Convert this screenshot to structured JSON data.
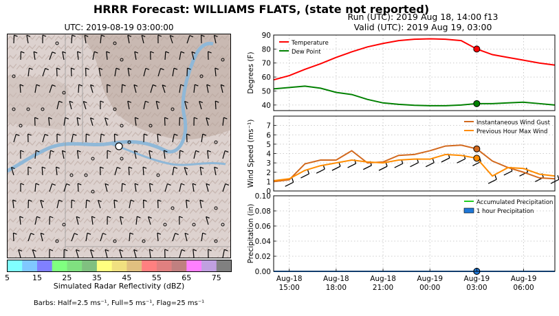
{
  "main_title": "HRRR Forecast: WILLIAMS FLATS, (state not reported)",
  "run_line": "Run (UTC): 2019 Aug 18, 14:00 f13",
  "valid_line": "Valid (UTC): 2019 Aug 19, 03:00",
  "map": {
    "title": "UTC: 2019-08-19 03:00:00",
    "colorbar_label": "Simulated Radar Reflectivity (dBZ)",
    "barbs_note": "Barbs: Half=2.5 ms⁻¹, Full=5 ms⁻¹, Flag=25 ms⁻¹",
    "colorbar_ticks": [
      "5",
      "15",
      "25",
      "35",
      "45",
      "55",
      "65",
      "75"
    ],
    "colorbar_colors": [
      "#80ffff",
      "#80c8ff",
      "#8080ff",
      "#80ff80",
      "#80e080",
      "#80c080",
      "#ffff80",
      "#f0e080",
      "#e0c080",
      "#ff8080",
      "#e08080",
      "#c08080",
      "#ff80ff",
      "#c0a0e0",
      "#808080"
    ]
  },
  "chart_data": [
    {
      "type": "line",
      "ylabel": "Degrees (F)",
      "ylim": [
        36,
        90
      ],
      "yticks": [
        "40",
        "50",
        "60",
        "70",
        "80",
        "90"
      ],
      "x_hours": [
        14,
        15,
        16,
        17,
        18,
        19,
        20,
        21,
        22,
        23,
        24,
        25,
        26,
        27,
        28,
        29,
        30,
        31,
        32
      ],
      "series": [
        {
          "name": "Temperature",
          "color": "#ff0000",
          "values": [
            58,
            61,
            65.5,
            69.5,
            74,
            78,
            81.5,
            84,
            86,
            87,
            87.3,
            87,
            86,
            80,
            76,
            74,
            72,
            70,
            68.5
          ]
        },
        {
          "name": "Dew Point",
          "color": "#008000",
          "values": [
            51.5,
            52.5,
            53.5,
            52,
            49,
            47.5,
            44,
            41.5,
            40.5,
            39.8,
            39.5,
            39.5,
            40,
            41,
            41,
            41.5,
            42,
            41,
            40
          ]
        }
      ],
      "marker_hour": 27,
      "legend": "top-left",
      "grid": true
    },
    {
      "type": "line",
      "ylabel": "Wind Speed (ms⁻¹)",
      "ylim": [
        0,
        8
      ],
      "yticks": [
        "0",
        "1",
        "2",
        "3",
        "4",
        "5",
        "6",
        "7"
      ],
      "x_hours": [
        14,
        15,
        16,
        17,
        18,
        19,
        20,
        21,
        22,
        23,
        24,
        25,
        26,
        27,
        28,
        29,
        30,
        31,
        32
      ],
      "series": [
        {
          "name": "Instantaneous Wind Gust",
          "color": "#d2691e",
          "values": [
            1.0,
            1.2,
            2.9,
            3.3,
            3.3,
            4.3,
            3.0,
            3.1,
            3.8,
            3.9,
            4.3,
            4.8,
            4.9,
            4.5,
            3.2,
            2.5,
            2.0,
            1.4,
            1.3
          ]
        },
        {
          "name": "Previous Hour Max Wind",
          "color": "#ff8c00",
          "values": [
            1.1,
            1.3,
            2.2,
            2.7,
            3.0,
            3.3,
            3.1,
            3.0,
            3.3,
            3.4,
            3.4,
            3.9,
            3.8,
            3.5,
            1.6,
            2.5,
            2.4,
            1.8,
            1.6
          ]
        }
      ],
      "marker_hour": 27,
      "legend": "top-right",
      "grid": true
    },
    {
      "type": "line",
      "ylabel": "Precipitation (in)",
      "ylim": [
        0,
        0.1
      ],
      "yticks": [
        "0.00",
        "0.02",
        "0.04",
        "0.06",
        "0.08",
        "0.10"
      ],
      "x_hours": [
        14,
        15,
        16,
        17,
        18,
        19,
        20,
        21,
        22,
        23,
        24,
        25,
        26,
        27,
        28,
        29,
        30,
        31,
        32
      ],
      "series": [
        {
          "name": "Accumulated Precipitation",
          "color": "#22cc22",
          "values": [
            0,
            0,
            0,
            0,
            0,
            0,
            0,
            0,
            0,
            0,
            0,
            0,
            0,
            0,
            0,
            0,
            0,
            0,
            0
          ]
        },
        {
          "name": "1 hour Precipitation",
          "color": "#1f78d8",
          "values": [
            0,
            0,
            0,
            0,
            0,
            0,
            0,
            0,
            0,
            0,
            0,
            0,
            0,
            0,
            0,
            0,
            0,
            0,
            0
          ]
        }
      ],
      "marker_hour": 27,
      "legend": "top-right",
      "grid": true
    }
  ],
  "x_axis": {
    "tick_hours": [
      15,
      18,
      21,
      24,
      27,
      30
    ],
    "tick_labels": [
      [
        "Aug-18",
        "15:00"
      ],
      [
        "Aug-18",
        "18:00"
      ],
      [
        "Aug-18",
        "21:00"
      ],
      [
        "Aug-19",
        "00:00"
      ],
      [
        "Aug-19",
        "03:00"
      ],
      [
        "Aug-19",
        "06:00"
      ]
    ]
  }
}
